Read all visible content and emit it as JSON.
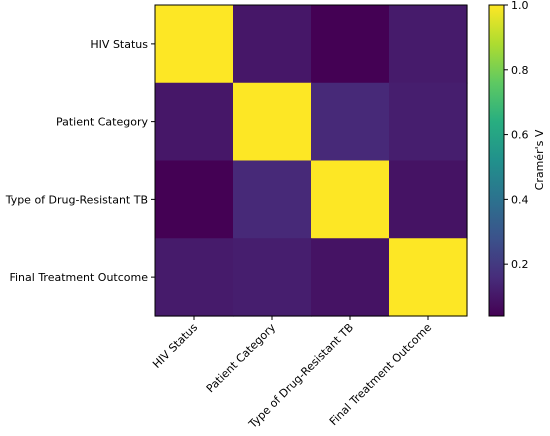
{
  "chart_data": {
    "type": "heatmap",
    "title": "",
    "x_categories": [
      "HIV Status",
      "Patient Category",
      "Type of Drug-Resistant TB",
      "Final Treatment Outcome"
    ],
    "y_categories": [
      "HIV Status",
      "Patient Category",
      "Type of Drug-Resistant TB",
      "Final Treatment Outcome"
    ],
    "values": [
      [
        1.0,
        0.1,
        0.04,
        0.11
      ],
      [
        0.1,
        1.0,
        0.15,
        0.12
      ],
      [
        0.04,
        0.15,
        1.0,
        0.09
      ],
      [
        0.11,
        0.12,
        0.09,
        1.0
      ]
    ],
    "colormap": "viridis",
    "colorbar": {
      "label": "Cramér's V",
      "vmin": 0.04,
      "vmax": 1.0,
      "ticks": [
        0.2,
        0.4,
        0.6,
        0.8,
        1.0
      ],
      "tick_labels": [
        "0.2",
        "0.4",
        "0.6",
        "0.8",
        "1.0"
      ]
    },
    "grid": false
  }
}
